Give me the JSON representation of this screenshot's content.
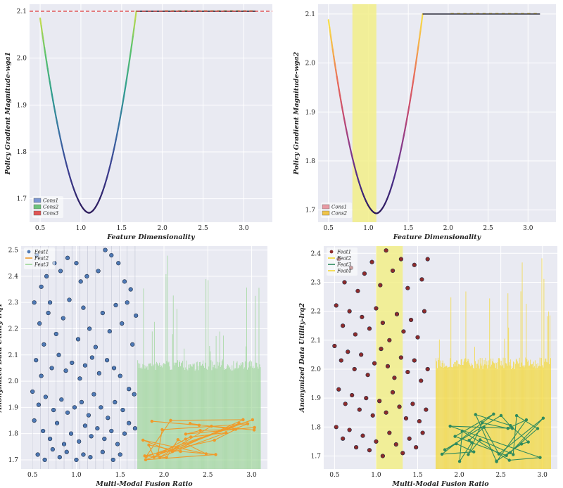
{
  "chart_data": [
    {
      "id": "tl",
      "type": "line",
      "xlabel": "Feature Dimensionality",
      "ylabel": "Policy Gradient Magnitude-wga1",
      "xlim": [
        0.37,
        3.35
      ],
      "ylim": [
        1.65,
        2.115
      ],
      "xticks": [
        "0.5",
        "1.0",
        "1.5",
        "2.0",
        "2.5",
        "3.0"
      ],
      "yticks": [
        "1.7",
        "1.8",
        "1.9",
        "2.0",
        "2.1"
      ],
      "curve": {
        "x_min": 0.5,
        "x_vertex": 1.1,
        "x_max": 1.68,
        "y_vertex": 1.67,
        "y_left": 2.085,
        "y_right": 2.1
      },
      "flat": {
        "x_start": 1.68,
        "x_end": 3.15,
        "y": 2.1
      },
      "hline": {
        "y": 2.1,
        "color": "#e03c3c"
      },
      "legend": [
        {
          "label": "Cons1",
          "color": "#7b96d2"
        },
        {
          "label": "Cons2",
          "color": "#6cc27a"
        },
        {
          "label": "Cons3",
          "color": "#e05656"
        }
      ]
    },
    {
      "id": "tr",
      "type": "line",
      "xlabel": "Feature Dimensionality",
      "ylabel": "Policy Gradient Magnitude-wga2",
      "xlim": [
        0.37,
        3.35
      ],
      "ylim": [
        1.675,
        2.12
      ],
      "xticks": [
        "0.5",
        "1.0",
        "1.5",
        "2.0",
        "2.5",
        "3.0"
      ],
      "yticks": [
        "1.7",
        "1.8",
        "1.9",
        "2.0",
        "2.1"
      ],
      "curve": {
        "x_min": 0.5,
        "x_vertex": 1.1,
        "x_max": 1.68,
        "y_vertex": 1.693,
        "y_left": 2.088,
        "y_right": 2.1
      },
      "flat": {
        "x_start": 1.68,
        "x_end": 3.15,
        "y": 2.1
      },
      "band": {
        "x0": 0.8,
        "x1": 1.1,
        "color": "#f2ee88"
      },
      "legend": [
        {
          "label": "Cons1",
          "color": "#e89aa3"
        },
        {
          "label": "Cons2",
          "color": "#f0c44a"
        }
      ]
    },
    {
      "id": "bl",
      "type": "scatter",
      "xlabel": "Multi-Modal Fusion Ratio",
      "ylabel": "Anonymized Data Utility-lrq1",
      "xlim": [
        0.37,
        3.18
      ],
      "ylim": [
        1.665,
        2.515
      ],
      "xticks": [
        "0.5",
        "1.0",
        "1.5",
        "2.0",
        "2.5",
        "3.0"
      ],
      "yticks": [
        "1.7",
        "1.8",
        "1.9",
        "2.0",
        "2.1",
        "2.2",
        "2.3",
        "2.4",
        "2.5"
      ],
      "scatter_points": [
        [
          0.55,
          2.48
        ],
        [
          0.6,
          2.36
        ],
        [
          0.66,
          2.4
        ],
        [
          0.7,
          2.3
        ],
        [
          0.75,
          2.45
        ],
        [
          0.82,
          2.42
        ],
        [
          0.9,
          2.47
        ],
        [
          1.0,
          2.45
        ],
        [
          1.05,
          2.38
        ],
        [
          1.12,
          2.4
        ],
        [
          1.25,
          2.42
        ],
        [
          1.33,
          2.5
        ],
        [
          1.4,
          2.48
        ],
        [
          1.48,
          2.45
        ],
        [
          1.55,
          2.38
        ],
        [
          1.62,
          2.35
        ],
        [
          0.52,
          2.3
        ],
        [
          0.58,
          2.22
        ],
        [
          0.63,
          2.14
        ],
        [
          0.68,
          2.26
        ],
        [
          0.77,
          2.18
        ],
        [
          0.85,
          2.24
        ],
        [
          0.92,
          2.31
        ],
        [
          1.02,
          2.16
        ],
        [
          1.08,
          2.28
        ],
        [
          1.15,
          2.2
        ],
        [
          1.22,
          2.13
        ],
        [
          1.3,
          2.26
        ],
        [
          1.38,
          2.19
        ],
        [
          1.45,
          2.29
        ],
        [
          1.52,
          2.22
        ],
        [
          1.58,
          2.3
        ],
        [
          1.64,
          2.14
        ],
        [
          1.68,
          2.25
        ],
        [
          0.54,
          2.08
        ],
        [
          0.6,
          2.02
        ],
        [
          0.72,
          2.05
        ],
        [
          0.8,
          2.1
        ],
        [
          0.88,
          2.04
        ],
        [
          0.95,
          2.07
        ],
        [
          1.04,
          2.01
        ],
        [
          1.1,
          2.06
        ],
        [
          1.18,
          2.09
        ],
        [
          1.26,
          2.03
        ],
        [
          1.35,
          2.08
        ],
        [
          1.43,
          2.05
        ],
        [
          1.5,
          2.02
        ],
        [
          1.6,
          1.97
        ],
        [
          1.66,
          1.95
        ],
        [
          0.5,
          1.96
        ],
        [
          0.57,
          1.91
        ],
        [
          0.65,
          1.94
        ],
        [
          0.74,
          1.89
        ],
        [
          0.83,
          1.93
        ],
        [
          0.9,
          1.88
        ],
        [
          0.98,
          1.9
        ],
        [
          1.06,
          1.92
        ],
        [
          1.14,
          1.87
        ],
        [
          1.2,
          1.95
        ],
        [
          1.28,
          1.9
        ],
        [
          1.36,
          1.86
        ],
        [
          1.44,
          1.92
        ],
        [
          1.53,
          1.89
        ],
        [
          1.6,
          1.84
        ],
        [
          1.67,
          1.82
        ],
        [
          0.52,
          1.85
        ],
        [
          0.62,
          1.81
        ],
        [
          0.7,
          1.78
        ],
        [
          0.78,
          1.84
        ],
        [
          0.86,
          1.76
        ],
        [
          0.94,
          1.8
        ],
        [
          1.03,
          1.77
        ],
        [
          1.1,
          1.83
        ],
        [
          1.17,
          1.79
        ],
        [
          1.24,
          1.82
        ],
        [
          1.32,
          1.78
        ],
        [
          1.4,
          1.81
        ],
        [
          1.47,
          1.76
        ],
        [
          1.55,
          1.8
        ],
        [
          0.56,
          1.72
        ],
        [
          0.64,
          1.7
        ],
        [
          0.73,
          1.74
        ],
        [
          0.81,
          1.71
        ],
        [
          0.89,
          1.73
        ],
        [
          1.0,
          1.7
        ],
        [
          1.08,
          1.72
        ],
        [
          1.16,
          1.71
        ],
        [
          1.3,
          1.73
        ],
        [
          1.42,
          1.7
        ],
        [
          1.5,
          1.72
        ]
      ],
      "scatter_color": "#4e79b5",
      "bars_region": {
        "x0": 1.7,
        "x1": 3.1,
        "base_top": 2.08,
        "tall_max": 2.48
      },
      "bars_color": "#9bd596",
      "orange_range": {
        "x0": 1.72,
        "x1": 3.08,
        "y0": 1.7,
        "y1": 1.86
      },
      "orange_color": "#f09a2a",
      "legend": [
        {
          "label": "Feat1",
          "color": "#4e79b5",
          "kind": "dot"
        },
        {
          "label": "Feat2",
          "color": "#f09a2a",
          "kind": "line"
        },
        {
          "label": "Feat3",
          "color": "#9bd596",
          "kind": "line"
        }
      ]
    },
    {
      "id": "br",
      "type": "scatter",
      "xlabel": "Multi-Modal Fusion Ratio",
      "ylabel": "Anonymized Data Utility-lrq2",
      "xlim": [
        0.37,
        3.18
      ],
      "ylim": [
        1.655,
        2.425
      ],
      "xticks": [
        "0.5",
        "1.0",
        "1.5",
        "2.0",
        "2.5",
        "3.0"
      ],
      "yticks": [
        "1.7",
        "1.8",
        "1.9",
        "2.0",
        "2.1",
        "2.2",
        "2.3",
        "2.4"
      ],
      "scatter_points": [
        [
          0.55,
          2.38
        ],
        [
          0.62,
          2.3
        ],
        [
          0.7,
          2.35
        ],
        [
          0.78,
          2.27
        ],
        [
          0.86,
          2.33
        ],
        [
          0.95,
          2.37
        ],
        [
          1.05,
          2.29
        ],
        [
          1.12,
          2.41
        ],
        [
          1.2,
          2.34
        ],
        [
          1.3,
          2.38
        ],
        [
          1.38,
          2.28
        ],
        [
          1.46,
          2.36
        ],
        [
          1.55,
          2.31
        ],
        [
          1.62,
          2.38
        ],
        [
          0.52,
          2.22
        ],
        [
          0.6,
          2.15
        ],
        [
          0.68,
          2.2
        ],
        [
          0.75,
          2.12
        ],
        [
          0.83,
          2.18
        ],
        [
          0.92,
          2.14
        ],
        [
          1.0,
          2.21
        ],
        [
          1.08,
          2.16
        ],
        [
          1.16,
          2.1
        ],
        [
          1.25,
          2.19
        ],
        [
          1.33,
          2.13
        ],
        [
          1.42,
          2.17
        ],
        [
          1.5,
          2.11
        ],
        [
          1.58,
          2.2
        ],
        [
          0.5,
          2.08
        ],
        [
          0.58,
          2.03
        ],
        [
          0.66,
          2.06
        ],
        [
          0.74,
          2.0
        ],
        [
          0.82,
          2.05
        ],
        [
          0.9,
          1.98
        ],
        [
          0.98,
          2.02
        ],
        [
          1.06,
          2.07
        ],
        [
          1.14,
          2.01
        ],
        [
          1.22,
          1.97
        ],
        [
          1.3,
          2.04
        ],
        [
          1.38,
          1.99
        ],
        [
          1.46,
          2.03
        ],
        [
          1.54,
          1.96
        ],
        [
          1.62,
          2.0
        ],
        [
          0.55,
          1.93
        ],
        [
          0.63,
          1.88
        ],
        [
          0.71,
          1.91
        ],
        [
          0.8,
          1.86
        ],
        [
          0.88,
          1.9
        ],
        [
          0.96,
          1.84
        ],
        [
          1.04,
          1.89
        ],
        [
          1.12,
          1.85
        ],
        [
          1.2,
          1.92
        ],
        [
          1.28,
          1.87
        ],
        [
          1.36,
          1.83
        ],
        [
          1.44,
          1.88
        ],
        [
          1.52,
          1.82
        ],
        [
          1.6,
          1.86
        ],
        [
          0.52,
          1.8
        ],
        [
          0.6,
          1.76
        ],
        [
          0.68,
          1.79
        ],
        [
          0.76,
          1.73
        ],
        [
          0.84,
          1.77
        ],
        [
          0.92,
          1.72
        ],
        [
          1.0,
          1.75
        ],
        [
          1.08,
          1.7
        ],
        [
          1.16,
          1.78
        ],
        [
          1.24,
          1.74
        ],
        [
          1.32,
          1.71
        ],
        [
          1.4,
          1.76
        ],
        [
          1.48,
          1.73
        ],
        [
          1.56,
          1.78
        ]
      ],
      "scatter_color": "#8e2b2b",
      "band": {
        "x0": 1.0,
        "x1": 1.32,
        "color": "#f2ee88"
      },
      "bars_region": {
        "x0": 1.72,
        "x1": 3.1,
        "base_top": 2.04,
        "tall_max": 2.4
      },
      "bars_color": "#f4d835",
      "green_range": {
        "x0": 1.75,
        "x1": 3.05,
        "y0": 1.68,
        "y1": 1.85
      },
      "green_color": "#2e8a5e",
      "legend": [
        {
          "label": "Feat1",
          "color": "#8e2b2b",
          "kind": "dot"
        },
        {
          "label": "Feat2",
          "color": "#f4d835",
          "kind": "line"
        },
        {
          "label": "Feat3",
          "color": "#2e8a5e",
          "kind": "line"
        },
        {
          "label": "Feat4",
          "color": "#f4d835",
          "kind": "line"
        }
      ]
    }
  ]
}
